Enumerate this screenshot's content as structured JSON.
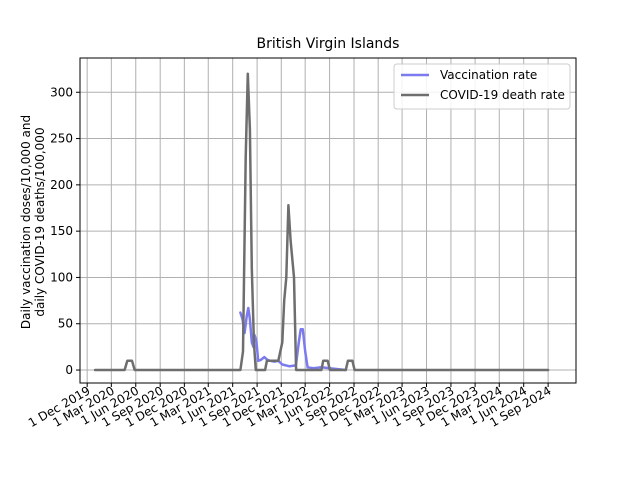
{
  "chart_data": {
    "type": "line",
    "title": "British Virgin Islands",
    "ylabel_line1": "Daily vaccination doses/10,000 and",
    "ylabel_line2": "daily COVID-19 deaths/100,000",
    "ylim": [
      -14,
      337
    ],
    "xlim": [
      "2019-11-04",
      "2024-12-15"
    ],
    "y_ticks": [
      0,
      50,
      100,
      150,
      200,
      250,
      300
    ],
    "x_ticks": [
      {
        "date": "2019-12-01",
        "label": "1 Dec 2019"
      },
      {
        "date": "2020-03-01",
        "label": "1 Mar 2020"
      },
      {
        "date": "2020-06-01",
        "label": "1 Jun 2020"
      },
      {
        "date": "2020-09-01",
        "label": "1 Sep 2020"
      },
      {
        "date": "2020-12-01",
        "label": "1 Dec 2020"
      },
      {
        "date": "2021-03-01",
        "label": "1 Mar 2021"
      },
      {
        "date": "2021-06-01",
        "label": "1 Jun 2021"
      },
      {
        "date": "2021-09-01",
        "label": "1 Sep 2021"
      },
      {
        "date": "2021-12-01",
        "label": "1 Dec 2021"
      },
      {
        "date": "2022-03-01",
        "label": "1 Mar 2022"
      },
      {
        "date": "2022-06-01",
        "label": "1 Jun 2022"
      },
      {
        "date": "2022-09-01",
        "label": "1 Sep 2022"
      },
      {
        "date": "2022-12-01",
        "label": "1 Dec 2022"
      },
      {
        "date": "2023-03-01",
        "label": "1 Mar 2023"
      },
      {
        "date": "2023-06-01",
        "label": "1 Jun 2023"
      },
      {
        "date": "2023-09-01",
        "label": "1 Sep 2023"
      },
      {
        "date": "2023-12-01",
        "label": "1 Dec 2023"
      },
      {
        "date": "2024-03-01",
        "label": "1 Mar 2024"
      },
      {
        "date": "2024-06-01",
        "label": "1 Jun 2024"
      },
      {
        "date": "2024-09-01",
        "label": "1 Sep 2024"
      }
    ],
    "grid": true,
    "legend_position": "top-right",
    "series": [
      {
        "name": "Vaccination rate",
        "color": "#7b7bef",
        "points": [
          {
            "x": "2021-06-30",
            "y": 62
          },
          {
            "x": "2021-07-08",
            "y": 55
          },
          {
            "x": "2021-07-16",
            "y": 40
          },
          {
            "x": "2021-07-24",
            "y": 58
          },
          {
            "x": "2021-07-30",
            "y": 67
          },
          {
            "x": "2021-08-05",
            "y": 55
          },
          {
            "x": "2021-08-12",
            "y": 30
          },
          {
            "x": "2021-08-18",
            "y": 25
          },
          {
            "x": "2021-08-22",
            "y": 38
          },
          {
            "x": "2021-08-29",
            "y": 32
          },
          {
            "x": "2021-09-05",
            "y": 10
          },
          {
            "x": "2021-09-15",
            "y": 11
          },
          {
            "x": "2021-09-28",
            "y": 14
          },
          {
            "x": "2021-10-10",
            "y": 11
          },
          {
            "x": "2021-10-20",
            "y": 10
          },
          {
            "x": "2021-11-05",
            "y": 9
          },
          {
            "x": "2021-11-20",
            "y": 10
          },
          {
            "x": "2021-12-05",
            "y": 6
          },
          {
            "x": "2022-01-01",
            "y": 4
          },
          {
            "x": "2022-01-25",
            "y": 5
          },
          {
            "x": "2022-02-05",
            "y": 30
          },
          {
            "x": "2022-02-12",
            "y": 44
          },
          {
            "x": "2022-02-20",
            "y": 44
          },
          {
            "x": "2022-03-01",
            "y": 20
          },
          {
            "x": "2022-03-10",
            "y": 3
          },
          {
            "x": "2022-04-01",
            "y": 2
          },
          {
            "x": "2022-05-01",
            "y": 3
          },
          {
            "x": "2022-06-01",
            "y": 2
          },
          {
            "x": "2022-07-01",
            "y": 1
          },
          {
            "x": "2022-08-01",
            "y": 0
          }
        ]
      },
      {
        "name": "COVID-19 death rate",
        "color": "#6e6e6e",
        "points": [
          {
            "x": "2019-12-31",
            "y": 0
          },
          {
            "x": "2020-04-20",
            "y": 0
          },
          {
            "x": "2020-04-30",
            "y": 10
          },
          {
            "x": "2020-05-18",
            "y": 10
          },
          {
            "x": "2020-05-28",
            "y": 0
          },
          {
            "x": "2021-06-30",
            "y": 0
          },
          {
            "x": "2021-07-10",
            "y": 20
          },
          {
            "x": "2021-07-20",
            "y": 230
          },
          {
            "x": "2021-07-28",
            "y": 320
          },
          {
            "x": "2021-08-05",
            "y": 260
          },
          {
            "x": "2021-08-12",
            "y": 110
          },
          {
            "x": "2021-08-20",
            "y": 30
          },
          {
            "x": "2021-08-27",
            "y": 0
          },
          {
            "x": "2021-10-01",
            "y": 0
          },
          {
            "x": "2021-10-08",
            "y": 10
          },
          {
            "x": "2021-11-20",
            "y": 10
          },
          {
            "x": "2021-12-05",
            "y": 30
          },
          {
            "x": "2021-12-12",
            "y": 75
          },
          {
            "x": "2021-12-20",
            "y": 100
          },
          {
            "x": "2021-12-28",
            "y": 178
          },
          {
            "x": "2022-01-05",
            "y": 140
          },
          {
            "x": "2022-01-18",
            "y": 100
          },
          {
            "x": "2022-01-26",
            "y": 0
          },
          {
            "x": "2022-05-01",
            "y": 0
          },
          {
            "x": "2022-05-08",
            "y": 10
          },
          {
            "x": "2022-05-25",
            "y": 10
          },
          {
            "x": "2022-06-02",
            "y": 0
          },
          {
            "x": "2022-08-01",
            "y": 0
          },
          {
            "x": "2022-08-09",
            "y": 10
          },
          {
            "x": "2022-08-26",
            "y": 10
          },
          {
            "x": "2022-09-03",
            "y": 0
          },
          {
            "x": "2024-09-01",
            "y": 0
          }
        ]
      }
    ]
  }
}
